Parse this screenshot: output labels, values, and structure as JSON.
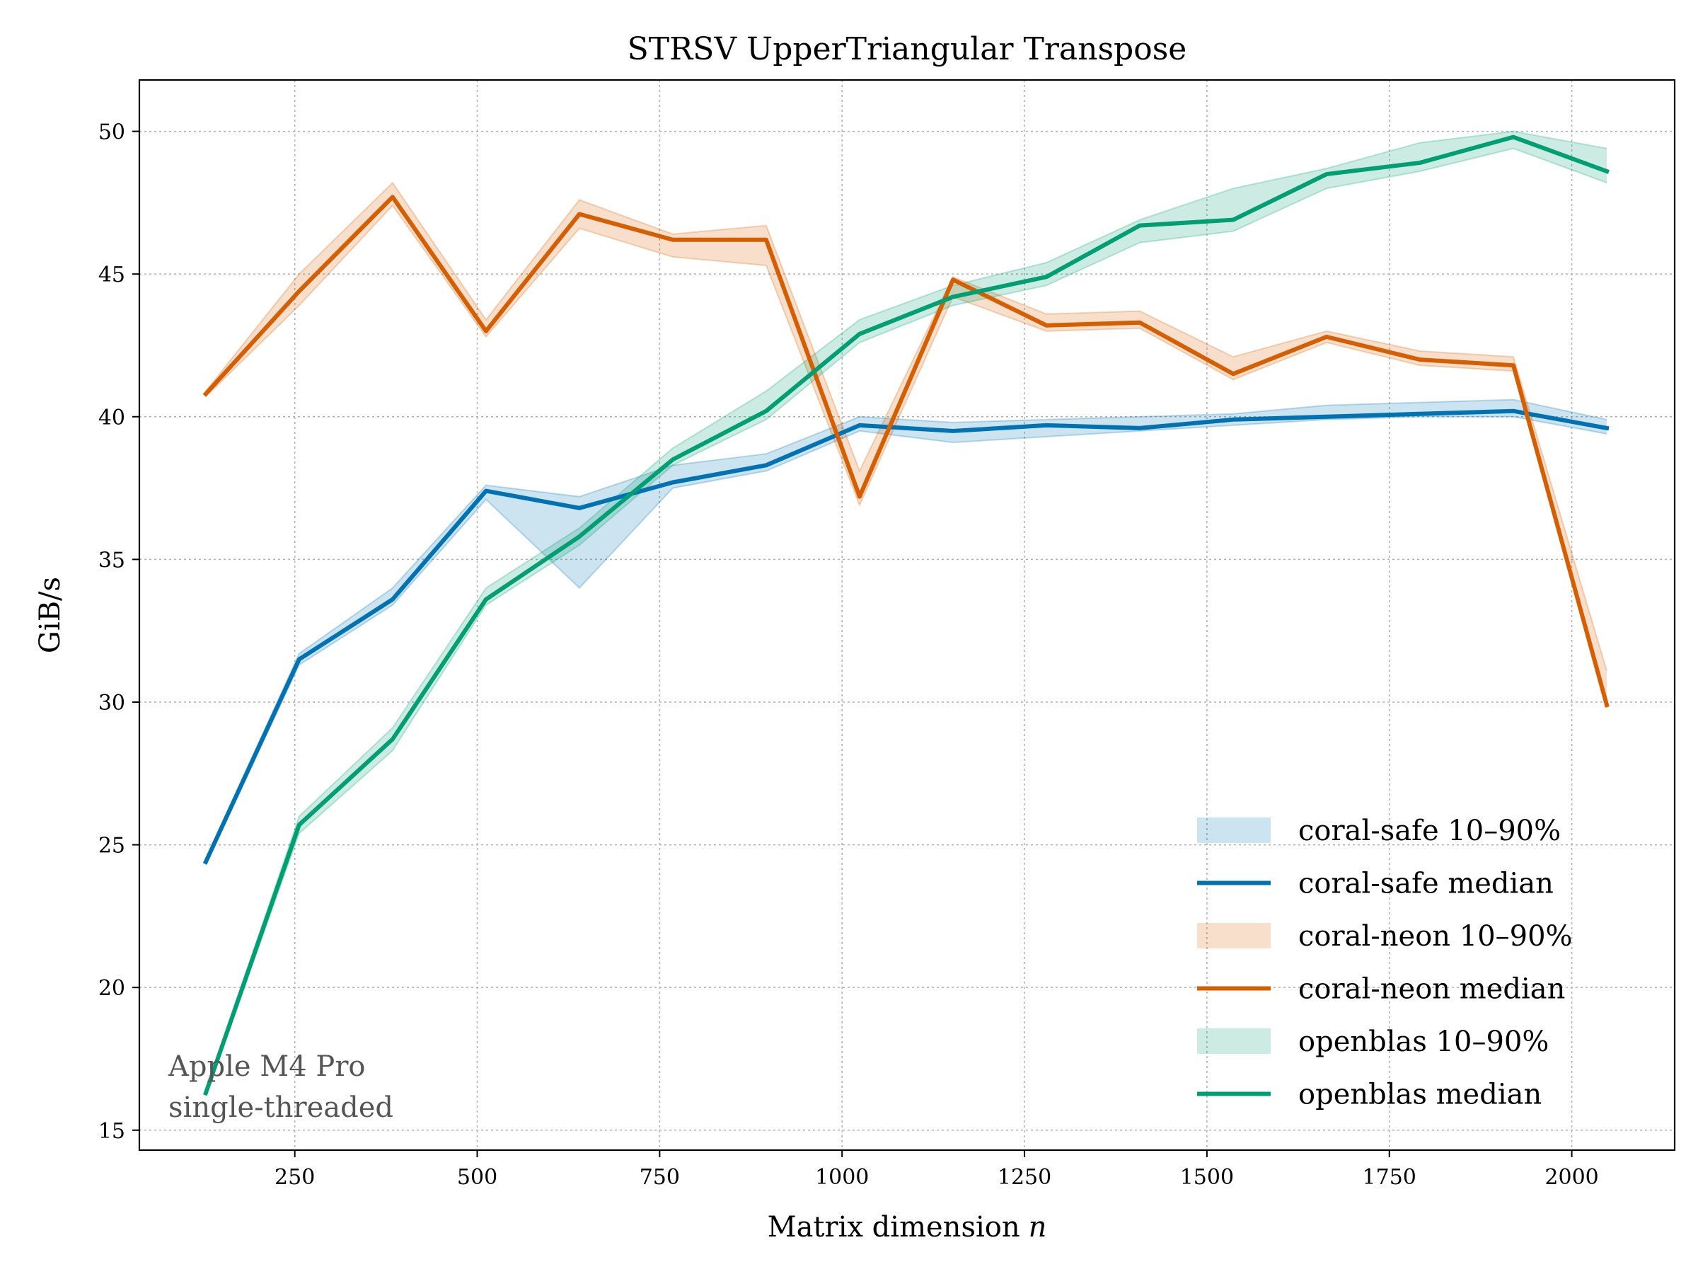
{
  "chart_data": {
    "type": "line",
    "title": "STRSV  UpperTriangular  Transpose",
    "xlabel": "Matrix dimension",
    "xlabel_var": "n",
    "ylabel": "GiB/s",
    "xlim": [
      37,
      2141
    ],
    "ylim": [
      14.3,
      51.8
    ],
    "xticks": [
      250,
      500,
      750,
      1000,
      1250,
      1500,
      1750,
      2000
    ],
    "yticks": [
      15,
      20,
      25,
      30,
      35,
      40,
      45,
      50
    ],
    "grid": true,
    "legend_position": "bottom-right",
    "annotation": [
      "Apple M4 Pro",
      "single-threaded"
    ],
    "x": [
      128,
      256,
      384,
      512,
      640,
      768,
      896,
      1024,
      1152,
      1280,
      1408,
      1536,
      1664,
      1792,
      1920,
      2048
    ],
    "series": [
      {
        "name": "coral-safe",
        "band_label": "coral-safe 10–90%",
        "median_label": "coral-safe median",
        "color": "#0072b2",
        "band_color": "#cce3f0",
        "median": [
          24.4,
          31.5,
          33.6,
          37.4,
          36.8,
          37.7,
          38.3,
          39.7,
          39.5,
          39.7,
          39.6,
          39.9,
          40.0,
          40.1,
          40.2,
          39.6
        ],
        "p10": [
          24.3,
          31.3,
          33.4,
          37.1,
          34.0,
          37.5,
          38.1,
          39.5,
          39.1,
          39.3,
          39.5,
          39.7,
          39.9,
          40.0,
          40.0,
          39.4
        ],
        "p90": [
          24.5,
          31.7,
          34.0,
          37.6,
          37.2,
          38.3,
          38.7,
          40.0,
          39.8,
          39.9,
          40.0,
          40.1,
          40.4,
          40.5,
          40.6,
          39.9
        ]
      },
      {
        "name": "coral-neon",
        "band_label": "coral-neon 10–90%",
        "median_label": "coral-neon median",
        "color": "#d55e00",
        "band_color": "#f6dac6",
        "median": [
          40.8,
          44.4,
          47.7,
          43.0,
          47.1,
          46.2,
          46.2,
          37.2,
          44.8,
          43.2,
          43.3,
          41.5,
          42.8,
          42.0,
          41.8,
          29.9
        ],
        "p10": [
          40.7,
          43.9,
          47.4,
          42.8,
          46.6,
          45.6,
          45.3,
          36.9,
          44.2,
          43.0,
          43.1,
          41.3,
          42.6,
          41.8,
          41.6,
          29.8
        ],
        "p90": [
          40.9,
          45.0,
          48.2,
          43.4,
          47.6,
          46.4,
          46.7,
          38.1,
          44.9,
          43.6,
          43.7,
          42.1,
          43.0,
          42.3,
          42.1,
          31.1
        ]
      },
      {
        "name": "openblas",
        "band_label": "openblas 10–90%",
        "median_label": "openblas median",
        "color": "#009e73",
        "band_color": "#cce9df",
        "median": [
          16.3,
          25.7,
          28.7,
          33.6,
          35.8,
          38.5,
          40.2,
          42.9,
          44.2,
          44.9,
          46.7,
          46.9,
          48.5,
          48.9,
          49.8,
          48.6
        ],
        "p10": [
          16.2,
          25.4,
          28.3,
          33.4,
          35.5,
          38.3,
          39.9,
          42.6,
          43.9,
          44.6,
          46.1,
          46.5,
          48.0,
          48.6,
          49.4,
          48.2
        ],
        "p90": [
          16.4,
          26.0,
          29.1,
          34.0,
          36.1,
          38.9,
          40.9,
          43.4,
          44.6,
          45.4,
          46.9,
          48.0,
          48.7,
          49.6,
          50.0,
          49.4
        ]
      }
    ]
  }
}
